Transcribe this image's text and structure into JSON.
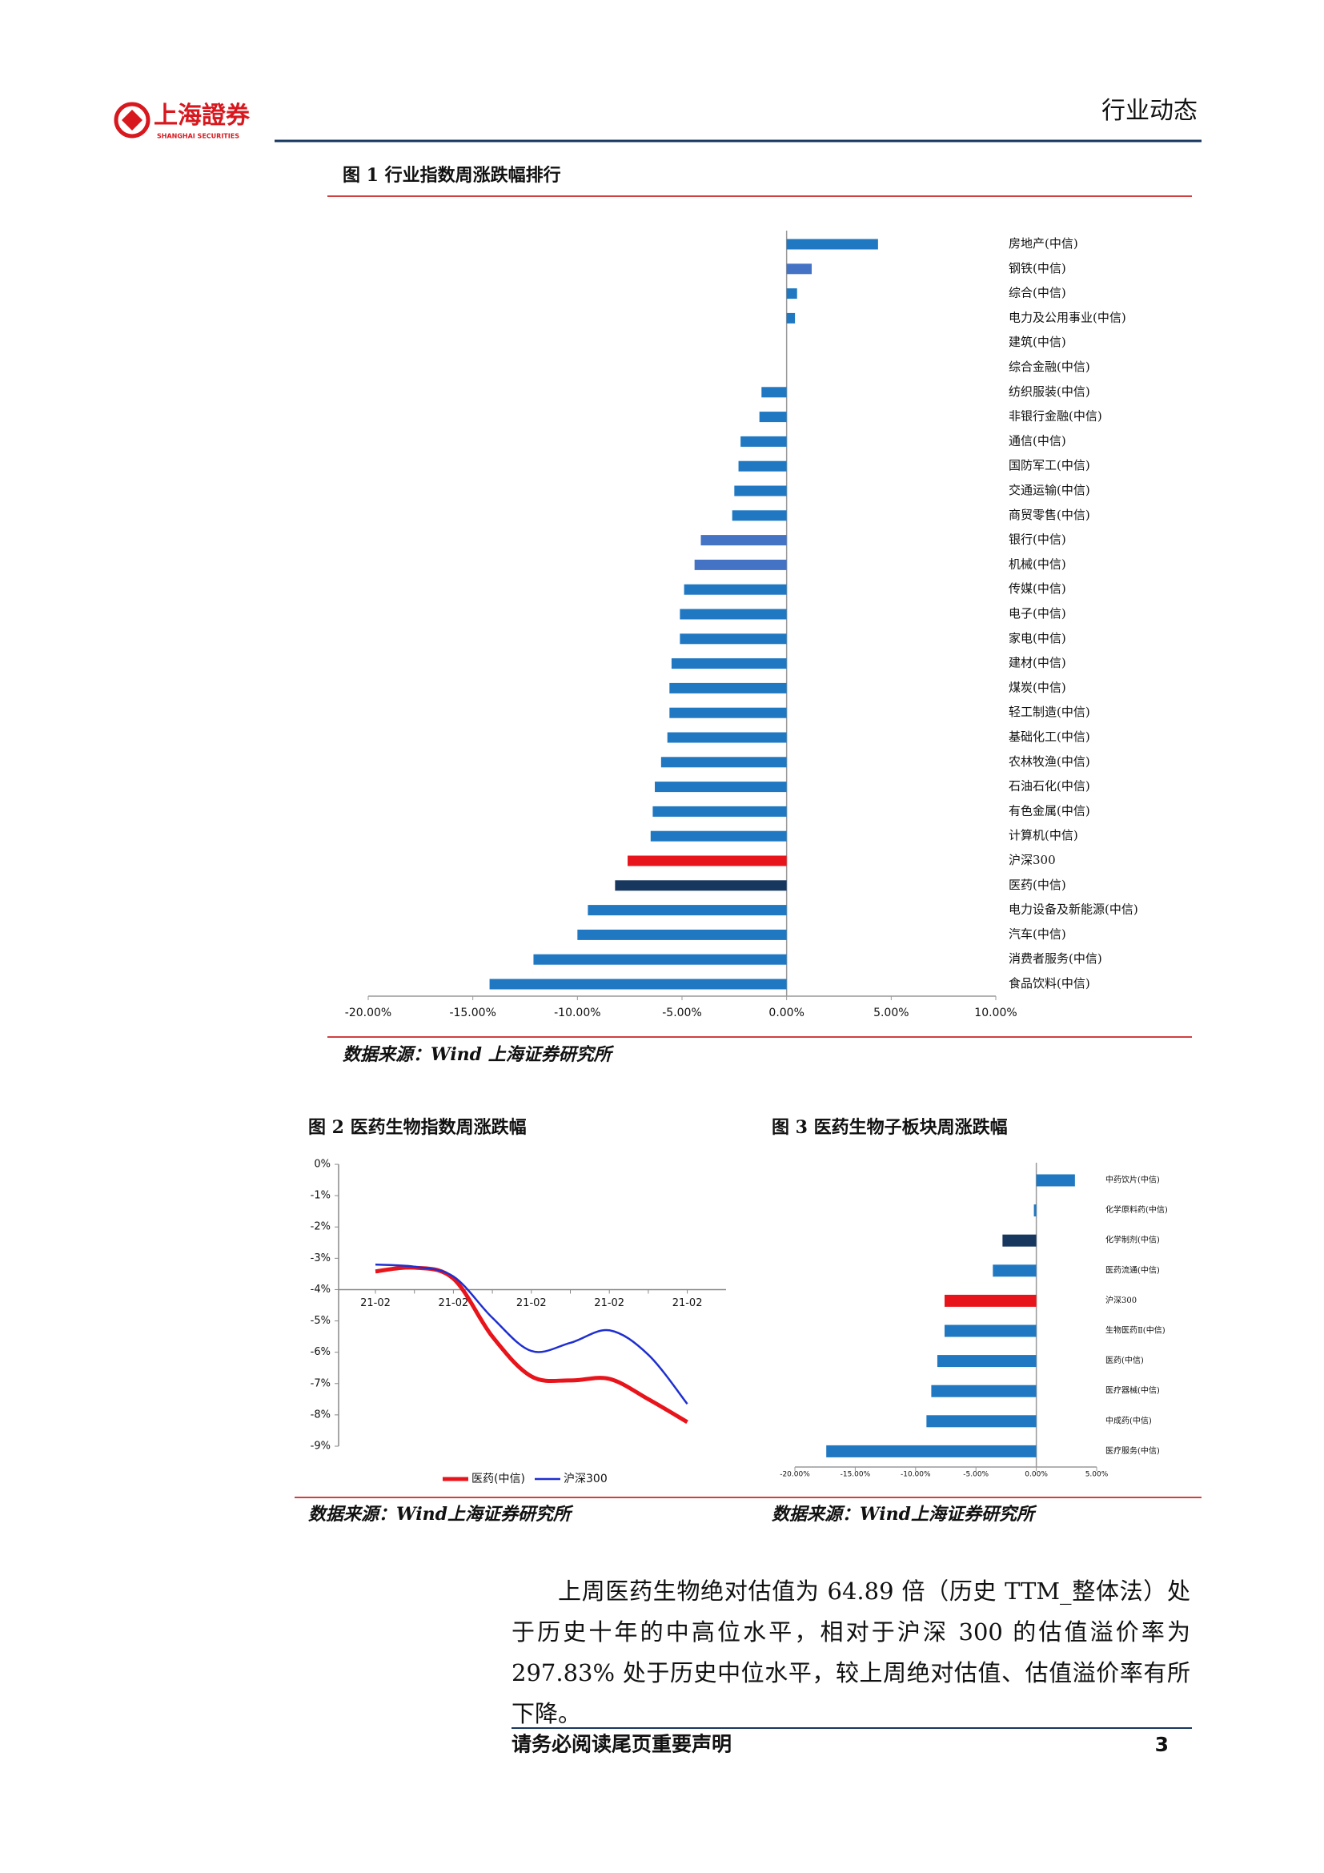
{
  "header": {
    "logo_cn": "上海證券",
    "logo_en": "SHANGHAI SECURITIES",
    "section": "行业动态"
  },
  "chart_data": [
    {
      "type": "bar",
      "orientation": "horizontal",
      "title": "图 1 行业指数周涨跌幅排行",
      "source": "数据来源：Wind 上海证券研究所",
      "categories": [
        "房地产(中信)",
        "钢铁(中信)",
        "综合(中信)",
        "电力及公用事业(中信)",
        "建筑(中信)",
        "综合金融(中信)",
        "纺织服装(中信)",
        "非银行金融(中信)",
        "通信(中信)",
        "国防军工(中信)",
        "交通运输(中信)",
        "商贸零售(中信)",
        "银行(中信)",
        "机械(中信)",
        "传媒(中信)",
        "电子(中信)",
        "家电(中信)",
        "建材(中信)",
        "煤炭(中信)",
        "轻工制造(中信)",
        "基础化工(中信)",
        "农林牧渔(中信)",
        "石油石化(中信)",
        "有色金属(中信)",
        "计算机(中信)",
        "沪深300",
        "医药(中信)",
        "电力设备及新能源(中信)",
        "汽车(中信)",
        "消费者服务(中信)",
        "食品饮料(中信)"
      ],
      "values": [
        4.37,
        1.2,
        0.5,
        0.4,
        0,
        0,
        -1.2,
        -1.3,
        -2.2,
        -2.3,
        -2.5,
        -2.6,
        -4.1,
        -4.4,
        -4.9,
        -5.1,
        -5.1,
        -5.5,
        -5.6,
        -5.6,
        -5.7,
        -6.0,
        -6.3,
        -6.4,
        -6.5,
        -7.6,
        -8.2,
        -9.5,
        -10.0,
        -12.1,
        -14.2
      ],
      "colors": [
        "#1f78c1",
        "#4472c4",
        "#1f78c1",
        "#1f78c1",
        "#1f78c1",
        "#1f78c1",
        "#1f78c1",
        "#1f78c1",
        "#1f78c1",
        "#1f78c1",
        "#1f78c1",
        "#1f78c1",
        "#4472c4",
        "#4472c4",
        "#1f78c1",
        "#1f78c1",
        "#1f78c1",
        "#1f78c1",
        "#1f78c1",
        "#1f78c1",
        "#1f78c1",
        "#1f78c1",
        "#1f78c1",
        "#1f78c1",
        "#1f78c1",
        "#e8141b",
        "#17375e",
        "#1f78c1",
        "#1f78c1",
        "#1f78c1",
        "#1f78c1"
      ],
      "xlim": [
        -20,
        10
      ],
      "xticks": [
        {
          "value": -20,
          "label": "-20.00%"
        },
        {
          "value": -15,
          "label": "-15.00%"
        },
        {
          "value": -10,
          "label": "-10.00%"
        },
        {
          "value": -5,
          "label": "-5.00%"
        },
        {
          "value": 0,
          "label": "0.00%"
        },
        {
          "value": 5,
          "label": "5.00%"
        },
        {
          "value": 10,
          "label": "10.00%"
        }
      ]
    },
    {
      "type": "line",
      "title": "图 2 医药生物指数周涨跌幅",
      "source": "数据来源：Wind上海证券研究所",
      "categories": [
        "21-02",
        null,
        "21-02",
        null,
        "21-02",
        null,
        "21-02",
        null,
        "21-02"
      ],
      "series": [
        {
          "name": "医药(中信)",
          "color": "#e8141b",
          "values": [
            -3.42,
            -3.3,
            -3.65,
            -5.5,
            -6.77,
            -6.9,
            -6.85,
            -7.5,
            -8.23
          ]
        },
        {
          "name": "沪深300",
          "color": "#1f2fd0",
          "values": [
            -3.2,
            -3.27,
            -3.58,
            -4.9,
            -5.96,
            -5.7,
            -5.3,
            -6.08,
            -7.65
          ]
        }
      ],
      "ylim": [
        -9,
        0
      ],
      "yticks": [
        {
          "value": 0,
          "label": "0%"
        },
        {
          "value": -1,
          "label": "-1%"
        },
        {
          "value": -2,
          "label": "-2%"
        },
        {
          "value": -3,
          "label": "-3%"
        },
        {
          "value": -4,
          "label": "-4%"
        },
        {
          "value": -5,
          "label": "-5%"
        },
        {
          "value": -6,
          "label": "-6%"
        },
        {
          "value": -7,
          "label": "-7%"
        },
        {
          "value": -8,
          "label": "-8%"
        },
        {
          "value": -9,
          "label": "-9%"
        }
      ],
      "x_axis_crosses": -4,
      "legend": "bottom"
    },
    {
      "type": "bar",
      "orientation": "horizontal",
      "title": "图 3 医药生物子板块周涨跌幅",
      "source": "数据来源：Wind上海证券研究所",
      "categories": [
        "中药饮片(中信)",
        "化学原料药(中信)",
        "化学制剂(中信)",
        "医药流通(中信)",
        "沪深300",
        "生物医药Ⅱ(中信)",
        "医药(中信)",
        "医疗器械(中信)",
        "中成药(中信)",
        "医疗服务(中信)"
      ],
      "values": [
        3.2,
        -0.2,
        -2.8,
        -3.6,
        -7.6,
        -7.6,
        -8.2,
        -8.7,
        -9.1,
        -17.4
      ],
      "colors": [
        "#1f78c1",
        "#1f78c1",
        "#17375e",
        "#1f78c1",
        "#e8141b",
        "#1f78c1",
        "#1f78c1",
        "#1f78c1",
        "#1f78c1",
        "#1f78c1"
      ],
      "xlim": [
        -20,
        5
      ],
      "xticks": [
        {
          "value": -20,
          "label": "-20.00%"
        },
        {
          "value": -15,
          "label": "-15.00%"
        },
        {
          "value": -10,
          "label": "-10.00%"
        },
        {
          "value": -5,
          "label": "-5.00%"
        },
        {
          "value": 0,
          "label": "0.00%"
        },
        {
          "value": 5,
          "label": "5.00%"
        }
      ]
    }
  ],
  "body": {
    "paragraph": "上周医药生物绝对估值为 64.89 倍（历史 TTM_整体法）处于历史十年的中高位水平，相对于沪深 300 的估值溢价率为 297.83% 处于历史中位水平，较上周绝对估值、估值溢价率有所下降。"
  },
  "footer": {
    "disclaimer": "请务必阅读尾页重要声明",
    "page": "3"
  }
}
